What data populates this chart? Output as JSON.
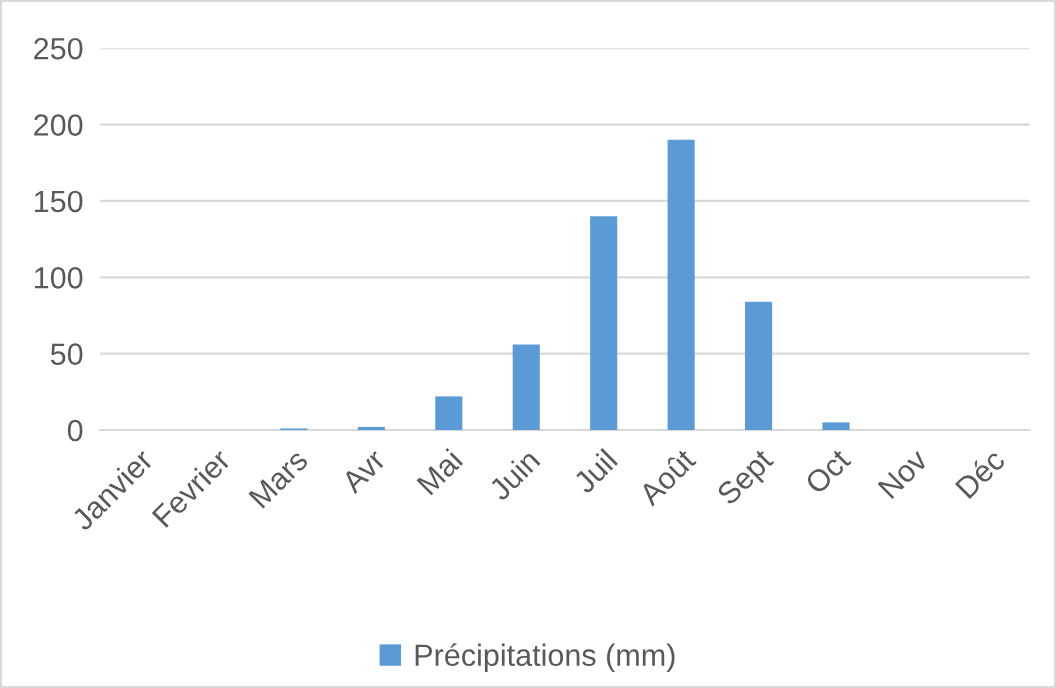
{
  "chart_data": {
    "type": "bar",
    "categories": [
      "Janvier",
      "Fevrier",
      "Mars",
      "Avr",
      "Mai",
      "Juin",
      "Juil",
      "Août",
      "Sept",
      "Oct",
      "Nov",
      "Déc"
    ],
    "series": [
      {
        "name": "Précipitations (mm)",
        "color": "#5b9bd5",
        "values": [
          0,
          0,
          1,
          2,
          22,
          56,
          140,
          190,
          84,
          5,
          0,
          0
        ]
      }
    ],
    "ylim": [
      0,
      250
    ],
    "yticks": [
      0,
      50,
      100,
      150,
      200,
      250
    ],
    "grid": "y",
    "legend": "bottom"
  }
}
